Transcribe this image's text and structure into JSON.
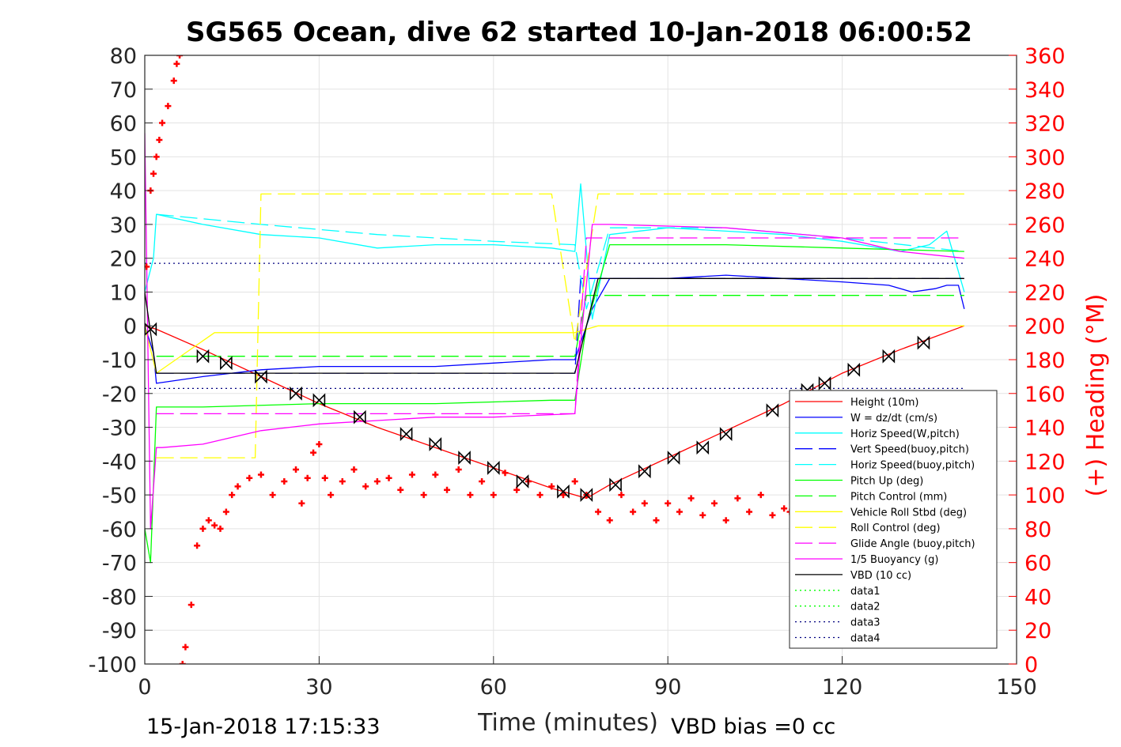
{
  "chart_data": {
    "type": "line",
    "title": "SG565 Ocean, dive 62 started 10-Jan-2018 06:00:52",
    "xlabel": "Time (minutes)",
    "ylabel": "",
    "y2label": "(+) Heading (°M)",
    "xlim": [
      0,
      150
    ],
    "ylim": [
      -100,
      80
    ],
    "y2lim": [
      0,
      360
    ],
    "xticks": [
      "0",
      "30",
      "60",
      "90",
      "120",
      "150"
    ],
    "yticks": [
      "80",
      "70",
      "60",
      "50",
      "40",
      "30",
      "20",
      "10",
      "0",
      "-10",
      "-20",
      "-30",
      "-40",
      "-50",
      "-60",
      "-70",
      "-80",
      "-90",
      "-100"
    ],
    "y2ticks": [
      "360",
      "340",
      "320",
      "300",
      "280",
      "260",
      "240",
      "220",
      "200",
      "180",
      "160",
      "140",
      "120",
      "100",
      "80",
      "60",
      "40",
      "20",
      "0"
    ],
    "grid": true,
    "legend_position": "bottom-right",
    "footer_left": "15-Jan-2018 17:15:33",
    "footer_right": "VBD bias =0 cc",
    "series": [
      {
        "name": "Height (10m)",
        "color": "#ff0000",
        "style": "solid",
        "x": [
          0,
          2,
          10,
          20,
          30,
          40,
          50,
          60,
          70,
          76,
          80,
          90,
          100,
          110,
          120,
          130,
          141
        ],
        "y": [
          0,
          -1,
          -7,
          -15,
          -23,
          -30,
          -36,
          -42,
          -48,
          -51,
          -47,
          -39,
          -31,
          -23,
          -14,
          -7,
          0
        ]
      },
      {
        "name": "W = dz/dt (cm/s)",
        "color": "#0000ff",
        "style": "solid",
        "x": [
          0,
          1.5,
          2,
          10,
          20,
          30,
          40,
          50,
          60,
          70,
          74,
          77,
          80,
          90,
          100,
          110,
          120,
          128,
          132,
          136,
          138,
          140,
          141
        ],
        "y": [
          0,
          -8,
          -17,
          -15,
          -13,
          -12,
          -12,
          -12,
          -11,
          -10,
          -10,
          5,
          14,
          14,
          15,
          14,
          13,
          12,
          10,
          11,
          12,
          12,
          5
        ]
      },
      {
        "name": "Horiz Speed(W,pitch)",
        "color": "#00ffff",
        "style": "solid",
        "x": [
          0,
          1.5,
          2,
          10,
          20,
          30,
          40,
          50,
          60,
          70,
          74,
          75,
          77,
          80,
          90,
          100,
          110,
          120,
          130,
          135,
          138,
          141
        ],
        "y": [
          10,
          20,
          33,
          30,
          27,
          26,
          23,
          24,
          24,
          23,
          22,
          42,
          2,
          27,
          29,
          28,
          27,
          25,
          22,
          24,
          28,
          10
        ]
      },
      {
        "name": "Vert Speed(buoy,pitch)",
        "color": "#0000ff",
        "style": "dashed",
        "x": [
          2,
          74,
          75,
          141
        ],
        "y": [
          -14,
          -14,
          14,
          14
        ]
      },
      {
        "name": "Horiz Speed(buoy,pitch)",
        "color": "#00ffff",
        "style": "dashed",
        "x": [
          2,
          20,
          40,
          60,
          74,
          76,
          80,
          100,
          120,
          141
        ],
        "y": [
          33,
          30,
          27,
          25,
          24,
          5,
          29,
          29,
          26,
          22
        ]
      },
      {
        "name": "Pitch Up (deg)",
        "color": "#00ff00",
        "style": "solid",
        "x": [
          0,
          1,
          2,
          10,
          30,
          50,
          70,
          74,
          76,
          80,
          100,
          120,
          141
        ],
        "y": [
          -60,
          -70,
          -24,
          -24,
          -23,
          -23,
          -22,
          -22,
          0,
          24,
          24,
          23,
          22
        ]
      },
      {
        "name": "Pitch Control (mm)",
        "color": "#00ff00",
        "style": "dashed",
        "x": [
          2,
          74,
          76,
          141
        ],
        "y": [
          -9,
          -9,
          9,
          9
        ]
      },
      {
        "name": "Vehicle Roll Stbd (deg)",
        "color": "#ffff00",
        "style": "solid",
        "x": [
          0,
          2,
          12,
          19,
          20,
          30,
          40,
          50,
          60,
          70,
          74,
          78,
          90,
          100,
          110,
          120,
          130,
          141
        ],
        "y": [
          0,
          -14,
          -2,
          -2,
          -2,
          -2,
          -2,
          -2,
          -2,
          -2,
          -2,
          0,
          0,
          0,
          0,
          0,
          0,
          0
        ]
      },
      {
        "name": "Roll Control (deg)",
        "color": "#ffff00",
        "style": "dashed",
        "x": [
          2,
          19,
          20,
          30,
          40,
          50,
          60,
          70,
          74,
          78,
          90,
          100,
          110,
          120,
          130,
          141
        ],
        "y": [
          -39,
          -39,
          39,
          39,
          39,
          39,
          39,
          39,
          -5,
          39,
          39,
          39,
          39,
          39,
          39,
          39
        ]
      },
      {
        "name": "Glide Angle (buoy,pitch)",
        "color": "#ff00ff",
        "style": "dashed",
        "x": [
          2,
          74,
          76,
          141
        ],
        "y": [
          -26,
          -26,
          26,
          26
        ]
      },
      {
        "name": "1/5 Buoyancy (g)",
        "color": "#ff00ff",
        "style": "solid",
        "x": [
          0,
          1,
          2,
          3,
          10,
          20,
          30,
          40,
          50,
          60,
          74,
          75,
          77,
          80,
          100,
          120,
          130,
          141
        ],
        "y": [
          57,
          -60,
          -36,
          -36,
          -35,
          -31,
          -29,
          -28,
          -27,
          -27,
          -26,
          -5,
          30,
          30,
          29,
          26,
          22,
          20
        ]
      },
      {
        "name": "VBD (10 cc)",
        "color": "#000000",
        "style": "solid",
        "x": [
          0,
          2,
          74,
          78,
          141
        ],
        "y": [
          10,
          -14,
          -14,
          14,
          14
        ]
      },
      {
        "name": "data1",
        "color": "#00ff00",
        "style": "dotted",
        "x": [],
        "y": []
      },
      {
        "name": "data2",
        "color": "#00ff00",
        "style": "dotted",
        "x": [],
        "y": []
      },
      {
        "name": "data3",
        "color": "#000080",
        "style": "dotted",
        "x": [
          0,
          141
        ],
        "y": [
          18.5,
          18.5
        ]
      },
      {
        "name": "data4",
        "color": "#000080",
        "style": "dotted",
        "x": [
          0,
          141
        ],
        "y": [
          -18.5,
          -18.5
        ]
      }
    ],
    "heading": {
      "axis": "right",
      "color": "#ff0000",
      "marker": "+",
      "x": [
        0.3,
        1,
        1.5,
        2,
        2.5,
        3,
        4,
        5,
        5.5,
        6,
        6.5,
        7,
        8,
        9,
        10,
        11,
        12,
        13,
        14,
        15,
        16,
        18,
        20,
        22,
        24,
        26,
        27,
        28,
        29,
        30,
        31,
        32,
        34,
        36,
        38,
        40,
        42,
        44,
        46,
        48,
        50,
        52,
        54,
        56,
        58,
        60,
        62,
        64,
        66,
        68,
        70,
        72,
        74,
        76,
        78,
        80,
        82,
        84,
        86,
        88,
        90,
        92,
        94,
        96,
        98,
        100,
        102,
        104,
        106,
        108,
        110,
        111
      ],
      "y": [
        235,
        280,
        290,
        300,
        310,
        320,
        330,
        345,
        355,
        360,
        0,
        10,
        35,
        70,
        80,
        85,
        82,
        80,
        90,
        100,
        105,
        110,
        112,
        100,
        108,
        115,
        95,
        110,
        125,
        130,
        110,
        100,
        108,
        115,
        105,
        108,
        110,
        103,
        112,
        100,
        112,
        103,
        115,
        100,
        108,
        100,
        113,
        103,
        108,
        100,
        105,
        100,
        108,
        100,
        90,
        85,
        100,
        90,
        95,
        85,
        95,
        90,
        98,
        88,
        95,
        85,
        98,
        90,
        100,
        88,
        92,
        90
      ]
    },
    "height_markers": {
      "marker": "bowtie",
      "x": [
        1,
        10,
        14,
        20,
        26,
        30,
        37,
        45,
        50,
        55,
        60,
        65,
        72,
        76,
        81,
        86,
        91,
        96,
        100,
        108,
        114,
        117,
        122,
        128,
        134
      ],
      "y": [
        -1,
        -9,
        -11,
        -15,
        -20,
        -22,
        -27,
        -32,
        -35,
        -39,
        -42,
        -46,
        -49,
        -50,
        -47,
        -43,
        -39,
        -36,
        -32,
        -25,
        -19,
        -17,
        -13,
        -9,
        -5
      ]
    }
  }
}
